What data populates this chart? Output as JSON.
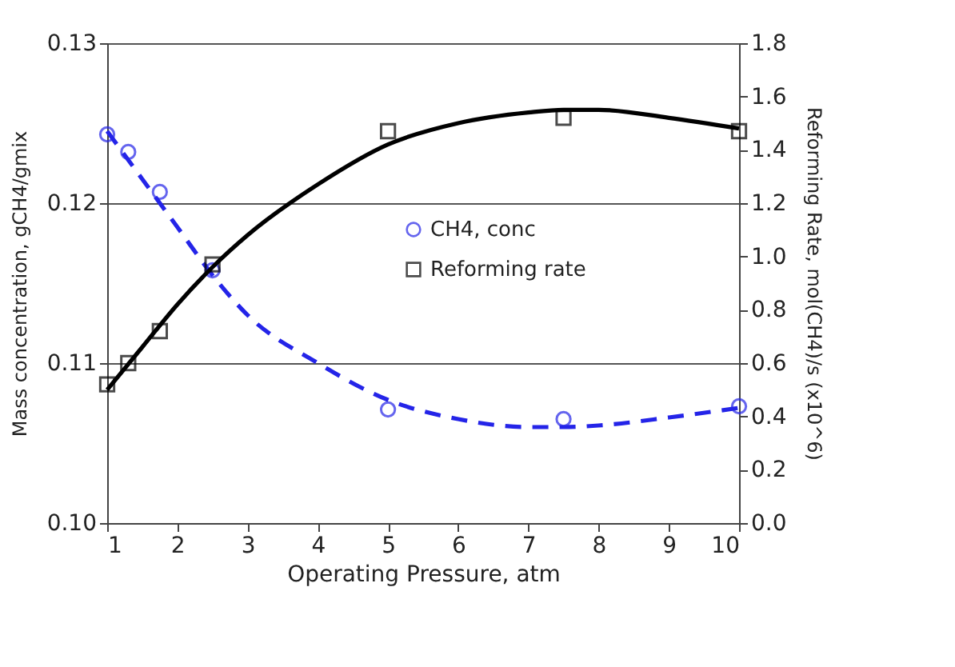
{
  "chart_data": {
    "type": "scatter",
    "xlabel": "Operating Pressure, atm",
    "ylabel": "Mass concentration, gCH4/gmix",
    "y2label": "Reforming Rate, mol(CH4)/s (x10^6)",
    "xlim": [
      1,
      10
    ],
    "xticks": [
      1,
      2,
      3,
      4,
      5,
      6,
      7,
      8,
      9,
      10
    ],
    "ylim": [
      0.1,
      0.13
    ],
    "yticks": [
      {
        "value": 0.1,
        "label": "0.10"
      },
      0.11,
      0.12,
      0.13
    ],
    "y2lim": [
      0,
      1.8
    ],
    "y2ticks": [
      {
        "value": 0,
        "label": "0.0"
      },
      0.2,
      0.4,
      0.6,
      0.8,
      {
        "value": 1,
        "label": "1.0"
      },
      1.2,
      1.4,
      1.6,
      1.8
    ],
    "grid": "y",
    "legend": "right",
    "series": [
      {
        "name": "CH4, conc",
        "marker": "circle",
        "color": "#2424e8",
        "x": [
          1,
          1.3,
          1.75,
          2.5,
          5,
          7.5,
          10
        ],
        "values": [
          0.1243,
          0.1232,
          0.1207,
          0.1158,
          0.1071,
          0.1065,
          0.1073
        ]
      },
      {
        "name": "Reforming rate",
        "axis": "y2",
        "marker": "square",
        "color": "#000000",
        "x": [
          1,
          1.3,
          1.75,
          2.5,
          5,
          7.5,
          10
        ],
        "values": [
          0.52,
          0.6,
          0.72,
          0.97,
          1.47,
          1.52,
          1.47
        ]
      },
      {
        "type": "line",
        "line_style": "dashed",
        "color": "#2424e8",
        "x": [
          1,
          1.5,
          2,
          2.5,
          3,
          4,
          5,
          6,
          7,
          7.5,
          8,
          9,
          10
        ],
        "values": [
          0.1245,
          0.1215,
          0.1185,
          0.1155,
          0.113,
          0.11,
          0.1077,
          0.1065,
          0.106,
          0.106,
          0.1061,
          0.1066,
          0.1072
        ]
      },
      {
        "type": "line",
        "axis": "y2",
        "line_style": "solid",
        "color": "#000000",
        "x": [
          1,
          1.5,
          2,
          2.5,
          3,
          4,
          5,
          6,
          7,
          7.5,
          8,
          9,
          10
        ],
        "values": [
          0.5,
          0.66,
          0.82,
          0.96,
          1.08,
          1.27,
          1.42,
          1.5,
          1.54,
          1.55,
          1.55,
          1.52,
          1.48
        ]
      }
    ]
  }
}
